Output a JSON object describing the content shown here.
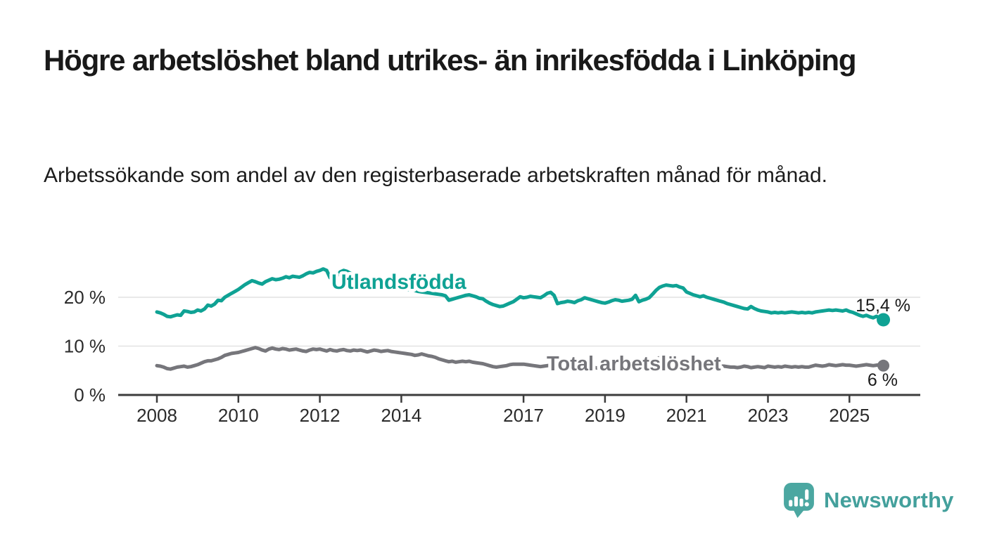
{
  "header": {
    "title": "Högre arbetslöshet bland utrikes- än inrikesfödda i Linköping",
    "subtitle": "Arbetssökande som andel av den registerbaserade arbetskraften månad för månad."
  },
  "chart_data": {
    "type": "line",
    "x_start_year": 2008,
    "x_step_months": 1,
    "x_ticks": [
      2008,
      2010,
      2012,
      2014,
      2017,
      2019,
      2021,
      2023,
      2025
    ],
    "y_ticks": [
      {
        "value": 0,
        "label": "0 %"
      },
      {
        "value": 10,
        "label": "10 %"
      },
      {
        "value": 20,
        "label": "20 %"
      }
    ],
    "ylim": [
      0,
      27
    ],
    "grid": "horizontal",
    "xlabel": "",
    "ylabel": "",
    "series": [
      {
        "name": "Utlandsfödda",
        "color": "#0fa294",
        "end_label": "15,4 %",
        "end_value": 15.4,
        "values": [
          17.0,
          16.8,
          16.5,
          16.1,
          16.0,
          16.2,
          16.4,
          16.3,
          17.2,
          17.1,
          16.9,
          17.0,
          17.4,
          17.2,
          17.6,
          18.4,
          18.2,
          18.6,
          19.4,
          19.3,
          20.0,
          20.4,
          20.8,
          21.2,
          21.6,
          22.1,
          22.6,
          23.0,
          23.4,
          23.2,
          22.9,
          22.7,
          23.2,
          23.5,
          23.8,
          23.6,
          23.7,
          23.9,
          24.2,
          24.0,
          24.3,
          24.2,
          24.1,
          24.4,
          24.8,
          25.1,
          25.0,
          25.3,
          25.5,
          25.8,
          25.5,
          24.0,
          23.6,
          24.3,
          25.2,
          25.5,
          25.3,
          24.9,
          24.6,
          24.4,
          24.1,
          23.8,
          23.6,
          23.4,
          23.2,
          23.0,
          22.8,
          22.7,
          22.5,
          22.4,
          22.2,
          22.1,
          21.9,
          21.8,
          21.6,
          21.5,
          21.4,
          21.2,
          21.1,
          21.0,
          20.9,
          20.8,
          20.7,
          20.6,
          20.5,
          20.3,
          19.4,
          19.6,
          19.8,
          20.0,
          20.2,
          20.4,
          20.5,
          20.3,
          20.1,
          19.8,
          19.7,
          19.2,
          18.8,
          18.5,
          18.3,
          18.1,
          18.2,
          18.5,
          18.8,
          19.1,
          19.6,
          20.1,
          19.9,
          20.0,
          20.2,
          20.1,
          20.0,
          19.9,
          20.3,
          20.8,
          21.0,
          20.4,
          18.7,
          18.9,
          19.0,
          19.2,
          19.1,
          18.9,
          19.3,
          19.5,
          19.9,
          19.7,
          19.5,
          19.3,
          19.1,
          18.9,
          18.8,
          19.0,
          19.3,
          19.5,
          19.4,
          19.2,
          19.3,
          19.4,
          19.6,
          20.4,
          19.1,
          19.4,
          19.6,
          19.9,
          20.6,
          21.4,
          22.0,
          22.3,
          22.5,
          22.4,
          22.3,
          22.4,
          22.1,
          21.9,
          21.1,
          20.8,
          20.5,
          20.3,
          20.1,
          20.3,
          20.0,
          19.8,
          19.6,
          19.4,
          19.2,
          19.0,
          18.7,
          18.5,
          18.3,
          18.1,
          17.9,
          17.7,
          17.6,
          18.1,
          17.7,
          17.4,
          17.2,
          17.1,
          17.0,
          16.8,
          16.9,
          16.8,
          16.9,
          16.8,
          16.9,
          17.0,
          16.9,
          16.8,
          16.9,
          16.8,
          16.9,
          16.8,
          17.0,
          17.1,
          17.2,
          17.3,
          17.4,
          17.3,
          17.4,
          17.3,
          17.2,
          17.4,
          17.1,
          16.9,
          16.6,
          16.3,
          16.1,
          16.3,
          16.0,
          15.8,
          16.1,
          15.7,
          15.4
        ]
      },
      {
        "name": "Total arbetslöshet",
        "color": "#76767b",
        "end_label": "6 %",
        "end_value": 6.0,
        "values": [
          6.0,
          5.9,
          5.7,
          5.4,
          5.3,
          5.5,
          5.7,
          5.8,
          5.9,
          5.7,
          5.8,
          6.0,
          6.2,
          6.5,
          6.8,
          7.0,
          7.0,
          7.2,
          7.4,
          7.7,
          8.1,
          8.3,
          8.5,
          8.6,
          8.7,
          8.9,
          9.1,
          9.3,
          9.5,
          9.7,
          9.5,
          9.2,
          9.0,
          9.4,
          9.6,
          9.4,
          9.3,
          9.5,
          9.4,
          9.2,
          9.3,
          9.4,
          9.2,
          9.0,
          8.9,
          9.2,
          9.4,
          9.3,
          9.4,
          9.2,
          9.0,
          9.3,
          9.1,
          9.0,
          9.2,
          9.3,
          9.1,
          9.0,
          9.2,
          9.1,
          9.2,
          9.0,
          8.8,
          9.0,
          9.2,
          9.1,
          8.9,
          9.0,
          9.1,
          8.9,
          8.8,
          8.7,
          8.6,
          8.5,
          8.4,
          8.3,
          8.1,
          8.2,
          8.4,
          8.2,
          8.0,
          7.9,
          7.7,
          7.4,
          7.2,
          7.0,
          6.8,
          6.9,
          6.7,
          6.8,
          6.9,
          6.8,
          6.9,
          6.7,
          6.6,
          6.5,
          6.4,
          6.2,
          6.0,
          5.8,
          5.7,
          5.8,
          5.9,
          6.0,
          6.2,
          6.3,
          6.3,
          6.3,
          6.3,
          6.2,
          6.1,
          6.0,
          5.9,
          5.8,
          5.9,
          6.0,
          6.1,
          6.0,
          5.9,
          5.8,
          5.7,
          5.6,
          5.5,
          5.6,
          5.7,
          5.6,
          5.7,
          5.8,
          5.7,
          5.6,
          5.5,
          5.6,
          5.7,
          5.8,
          5.7,
          5.8,
          5.9,
          6.0,
          6.1,
          6.2,
          6.1,
          6.2,
          6.3,
          6.4,
          6.5,
          6.6,
          7.0,
          7.4,
          7.6,
          7.7,
          7.6,
          7.5,
          7.4,
          7.2,
          7.0,
          7.1,
          7.0,
          6.9,
          6.8,
          6.6,
          6.5,
          6.4,
          6.3,
          6.2,
          6.1,
          6.0,
          5.9,
          5.9,
          5.8,
          5.7,
          5.7,
          5.6,
          5.7,
          5.9,
          5.8,
          5.6,
          5.7,
          5.8,
          5.7,
          5.6,
          5.9,
          5.8,
          5.7,
          5.8,
          5.7,
          5.9,
          5.8,
          5.7,
          5.8,
          5.7,
          5.8,
          5.7,
          5.7,
          5.9,
          6.1,
          6.0,
          5.9,
          6.0,
          6.2,
          6.1,
          6.0,
          6.1,
          6.2,
          6.1,
          6.1,
          6.0,
          5.9,
          6.0,
          6.1,
          6.2,
          6.1,
          6.0,
          6.1,
          6.2,
          6.0
        ]
      }
    ]
  },
  "footer": {
    "brand": "Newsworthy"
  }
}
